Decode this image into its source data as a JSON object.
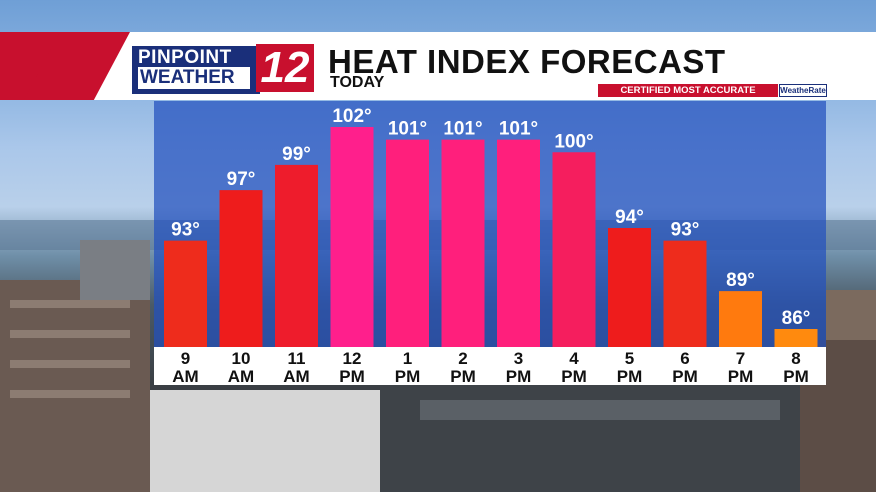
{
  "header": {
    "logo_line1": "PINPOINT",
    "logo_line2": "WEATHER",
    "logo_number": "12",
    "title": "HEAT INDEX FORECAST",
    "subtitle": "TODAY",
    "certified": "CERTIFIED MOST ACCURATE",
    "badge": "WeatheRate"
  },
  "colors": {
    "brand_red": "#c8102e",
    "brand_navy": "#1a2f7a",
    "panel_blue": "#2350be"
  },
  "chart_data": {
    "type": "bar",
    "title": "HEAT INDEX FORECAST",
    "subtitle": "TODAY",
    "categories": [
      {
        "hour": "9",
        "period": "AM"
      },
      {
        "hour": "10",
        "period": "AM"
      },
      {
        "hour": "11",
        "period": "AM"
      },
      {
        "hour": "12",
        "period": "PM"
      },
      {
        "hour": "1",
        "period": "PM"
      },
      {
        "hour": "2",
        "period": "PM"
      },
      {
        "hour": "3",
        "period": "PM"
      },
      {
        "hour": "4",
        "period": "PM"
      },
      {
        "hour": "5",
        "period": "PM"
      },
      {
        "hour": "6",
        "period": "PM"
      },
      {
        "hour": "7",
        "period": "PM"
      },
      {
        "hour": "8",
        "period": "PM"
      }
    ],
    "values": [
      93,
      97,
      99,
      102,
      101,
      101,
      101,
      100,
      94,
      93,
      89,
      86
    ],
    "value_labels": [
      "93°",
      "97°",
      "99°",
      "102°",
      "101°",
      "101°",
      "101°",
      "100°",
      "94°",
      "93°",
      "89°",
      "86°"
    ],
    "bar_colors": [
      "#ee2c1c",
      "#ee1c1c",
      "#ee1c2c",
      "#ff1f8c",
      "#ff1f7c",
      "#ff1f7c",
      "#ff1f7c",
      "#f51e5e",
      "#ee1c1c",
      "#ee2c1c",
      "#ff7a0e",
      "#ff8a0e"
    ],
    "ylim": [
      82,
      103
    ],
    "grid": false,
    "legend": "none"
  }
}
